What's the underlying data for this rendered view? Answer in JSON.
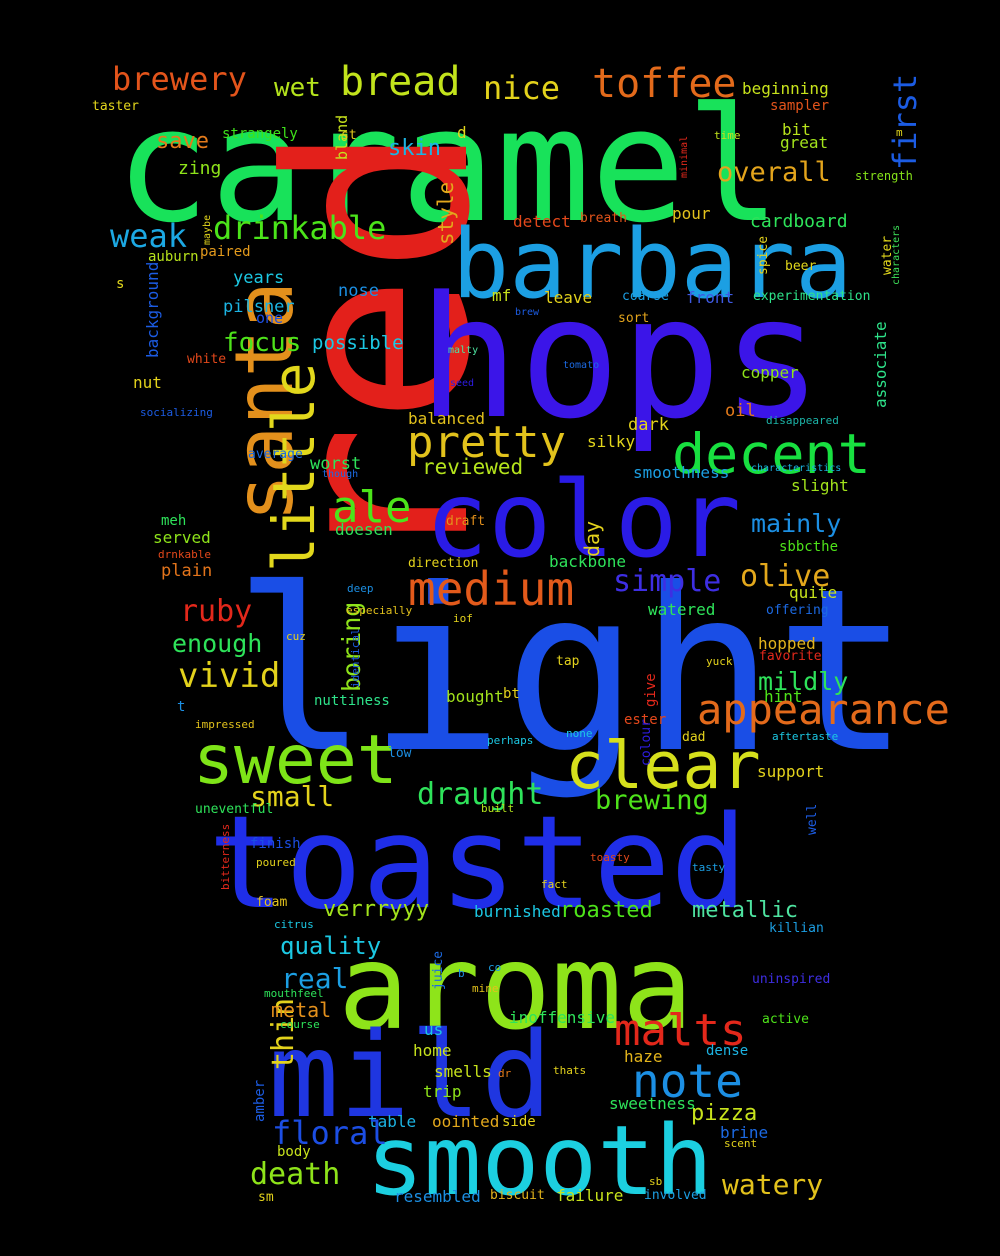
{
  "words": [
    {
      "text": "caramel",
      "color": "#18e25a"
    },
    {
      "text": "red",
      "color": "#e3201b"
    },
    {
      "text": "hops",
      "color": "#3b15e8"
    },
    {
      "text": "light",
      "color": "#1a4ee6"
    },
    {
      "text": "toasted",
      "color": "#1f2ee8"
    },
    {
      "text": "aroma",
      "color": "#8ee41a"
    },
    {
      "text": "smooth",
      "color": "#1ccfe0"
    },
    {
      "text": "mild",
      "color": "#1f36e0"
    },
    {
      "text": "barbara",
      "color": "#1c9fe3"
    },
    {
      "text": "color",
      "color": "#2a1be6"
    },
    {
      "text": "santa",
      "color": "#e3901c"
    },
    {
      "text": "sweet",
      "color": "#7ee418"
    },
    {
      "text": "clear",
      "color": "#d6e01c"
    },
    {
      "text": "little",
      "color": "#e2d81c"
    },
    {
      "text": "pretty",
      "color": "#e2c21c"
    },
    {
      "text": "decent",
      "color": "#18e040"
    },
    {
      "text": "medium",
      "color": "#e35a1b"
    },
    {
      "text": "malts",
      "color": "#e3281b"
    },
    {
      "text": "note",
      "color": "#1c8fe3"
    },
    {
      "text": "ale",
      "color": "#4ce41a"
    },
    {
      "text": "bread",
      "color": "#c2e31c"
    },
    {
      "text": "toffee",
      "color": "#e36a1b"
    },
    {
      "text": "brewery",
      "color": "#e3541b"
    },
    {
      "text": "drinkable",
      "color": "#4be41a"
    },
    {
      "text": "weak",
      "color": "#1ca8e3"
    },
    {
      "text": "nice",
      "color": "#e3d21c"
    },
    {
      "text": "first",
      "color": "#1c5ce3"
    },
    {
      "text": "overall",
      "color": "#e3a41c"
    },
    {
      "text": "wet",
      "color": "#b4e31c"
    },
    {
      "text": "save",
      "color": "#e37a1b"
    },
    {
      "text": "skin",
      "color": "#1cb4e3"
    },
    {
      "text": "zing",
      "color": "#8ee31a"
    },
    {
      "text": "strangely",
      "color": "#3ee31a"
    },
    {
      "text": "bland",
      "color": "#c8e31c"
    },
    {
      "text": "st",
      "color": "#e3c81c"
    },
    {
      "text": "d",
      "color": "#e3d81c"
    },
    {
      "text": "taster",
      "color": "#e3d61c"
    },
    {
      "text": "beginning",
      "color": "#c8e31c"
    },
    {
      "text": "sampler",
      "color": "#e3541b"
    },
    {
      "text": "bit",
      "color": "#b8e31c"
    },
    {
      "text": "great",
      "color": "#a2e31c"
    },
    {
      "text": "time",
      "color": "#c2e31c"
    },
    {
      "text": "minimal",
      "color": "#e3281b"
    },
    {
      "text": "m",
      "color": "#e3d81c"
    },
    {
      "text": "strength",
      "color": "#86e31a"
    },
    {
      "text": "style",
      "color": "#e3a81c"
    },
    {
      "text": "detect",
      "color": "#e3481b"
    },
    {
      "text": "breath",
      "color": "#e3541b"
    },
    {
      "text": "pour",
      "color": "#e3c21c"
    },
    {
      "text": "cardboard",
      "color": "#2ee35a"
    },
    {
      "text": "maybe",
      "color": "#e3d61c"
    },
    {
      "text": "paired",
      "color": "#e39a1c"
    },
    {
      "text": "auburn",
      "color": "#b8e31c"
    },
    {
      "text": "years",
      "color": "#1cc8e3"
    },
    {
      "text": "spice",
      "color": "#e3d21c"
    },
    {
      "text": "beer",
      "color": "#e3d81c"
    },
    {
      "text": "water",
      "color": "#e3d81c"
    },
    {
      "text": "characters",
      "color": "#3ee35a"
    },
    {
      "text": "s",
      "color": "#e3d81c"
    },
    {
      "text": "background",
      "color": "#1c5ce3"
    },
    {
      "text": "nose",
      "color": "#1c8fe3"
    },
    {
      "text": "mf",
      "color": "#c8e31c"
    },
    {
      "text": "leave",
      "color": "#e3d21c"
    },
    {
      "text": "front",
      "color": "#3e5ae3"
    },
    {
      "text": "experimentation",
      "color": "#2ee38a"
    },
    {
      "text": "coarse",
      "color": "#1c9fe3"
    },
    {
      "text": "pilsner",
      "color": "#1cb4e3"
    },
    {
      "text": "one",
      "color": "#1c4ee3"
    },
    {
      "text": "brew",
      "color": "#1c5ce3"
    },
    {
      "text": "sort",
      "color": "#e3a41c"
    },
    {
      "text": "focus",
      "color": "#4ee31a"
    },
    {
      "text": "possible",
      "color": "#1cc8e3"
    },
    {
      "text": "malty",
      "color": "#4ee3a0"
    },
    {
      "text": "tomato",
      "color": "#1c6ae3"
    },
    {
      "text": "associate",
      "color": "#2ee38a"
    },
    {
      "text": "white",
      "color": "#e3481b"
    },
    {
      "text": "copper",
      "color": "#8ee31a"
    },
    {
      "text": "nut",
      "color": "#e3d21c"
    },
    {
      "text": "seed",
      "color": "#2e1ce3"
    },
    {
      "text": "socializing",
      "color": "#1c5ce3"
    },
    {
      "text": "oil",
      "color": "#e37a1b"
    },
    {
      "text": "balanced",
      "color": "#e3c21c"
    },
    {
      "text": "disappeared",
      "color": "#1cb4a8"
    },
    {
      "text": "average",
      "color": "#1c6ae3"
    },
    {
      "text": "dark",
      "color": "#e3d21c"
    },
    {
      "text": "silky",
      "color": "#e3d61c"
    },
    {
      "text": "though",
      "color": "#1c6ae3"
    },
    {
      "text": "worst",
      "color": "#2ee35a"
    },
    {
      "text": "reviewed",
      "color": "#b4e31c"
    },
    {
      "text": "smoothness",
      "color": "#1c9fe3"
    },
    {
      "text": "characteristics",
      "color": "#1cb4e3"
    },
    {
      "text": "slight",
      "color": "#a2e31c"
    },
    {
      "text": "meh",
      "color": "#2ee35a"
    },
    {
      "text": "mainly",
      "color": "#1c8fe3"
    },
    {
      "text": "served",
      "color": "#8ee31a"
    },
    {
      "text": "doesen",
      "color": "#2ee35a"
    },
    {
      "text": "day",
      "color": "#e3d21c"
    },
    {
      "text": "draft",
      "color": "#e3901c"
    },
    {
      "text": "drnkable",
      "color": "#e3481b"
    },
    {
      "text": "plain",
      "color": "#e3741b"
    },
    {
      "text": "backbone",
      "color": "#2ee35a"
    },
    {
      "text": "sbbcthe",
      "color": "#4ee31a"
    },
    {
      "text": "direction",
      "color": "#e3d21c"
    },
    {
      "text": "boring",
      "color": "#8ee31a"
    },
    {
      "text": "simple",
      "color": "#3e2ee3"
    },
    {
      "text": "olive",
      "color": "#e3a81c"
    },
    {
      "text": "quite",
      "color": "#c8e31c"
    },
    {
      "text": "ruby",
      "color": "#e3281b"
    },
    {
      "text": "deep",
      "color": "#1c8fe3"
    },
    {
      "text": "especially",
      "color": "#e3c21c"
    },
    {
      "text": "watered",
      "color": "#2ee35a"
    },
    {
      "text": "offering",
      "color": "#1c6ae3"
    },
    {
      "text": "enough",
      "color": "#2ee35a"
    },
    {
      "text": "cuz",
      "color": "#e3d21c"
    },
    {
      "text": "iof",
      "color": "#e3d21c"
    },
    {
      "text": "identical",
      "color": "#1c5ce3"
    },
    {
      "text": "hopped",
      "color": "#e3b41c"
    },
    {
      "text": "favorite",
      "color": "#e3281b"
    },
    {
      "text": "vivid",
      "color": "#e3d21c"
    },
    {
      "text": "tap",
      "color": "#e3d21c"
    },
    {
      "text": "yuck",
      "color": "#e3d21c"
    },
    {
      "text": "give",
      "color": "#e3281b"
    },
    {
      "text": "mildly",
      "color": "#2ee35a"
    },
    {
      "text": "hint",
      "color": "#4ee31a"
    },
    {
      "text": "bought",
      "color": "#a2e31c"
    },
    {
      "text": "bt",
      "color": "#e3d21c"
    },
    {
      "text": "appearance",
      "color": "#e36a1b"
    },
    {
      "text": "t",
      "color": "#1c8fe3"
    },
    {
      "text": "nuttiness",
      "color": "#2ee38a"
    },
    {
      "text": "impressed",
      "color": "#e3c21c"
    },
    {
      "text": "ester",
      "color": "#e3481b"
    },
    {
      "text": "none",
      "color": "#1cc8e3"
    },
    {
      "text": "dad",
      "color": "#e3d21c"
    },
    {
      "text": "aftertaste",
      "color": "#1cc8e3"
    },
    {
      "text": "perhaps",
      "color": "#1cc8e3"
    },
    {
      "text": "colour",
      "color": "#2e1ce3"
    },
    {
      "text": "low",
      "color": "#1c8fe3"
    },
    {
      "text": "support",
      "color": "#e3d21c"
    },
    {
      "text": "small",
      "color": "#e3d21c"
    },
    {
      "text": "draught",
      "color": "#2ee35a"
    },
    {
      "text": "brewing",
      "color": "#4ee31a"
    },
    {
      "text": "uneventful",
      "color": "#2ee35a"
    },
    {
      "text": "built",
      "color": "#b4e31c"
    },
    {
      "text": "well",
      "color": "#1c5ce3"
    },
    {
      "text": "bitterness",
      "color": "#e3281b"
    },
    {
      "text": "finish",
      "color": "#1c4ee3"
    },
    {
      "text": "poured",
      "color": "#e3d21c"
    },
    {
      "text": "toasty",
      "color": "#e3481b"
    },
    {
      "text": "tasty",
      "color": "#1c9fe3"
    },
    {
      "text": "fact",
      "color": "#e3d21c"
    },
    {
      "text": "foam",
      "color": "#e3c21c"
    },
    {
      "text": "verrryyy",
      "color": "#a2e31c"
    },
    {
      "text": "burnished",
      "color": "#1cc8e3"
    },
    {
      "text": "roasted",
      "color": "#4ee31a"
    },
    {
      "text": "metallic",
      "color": "#4ee3a0"
    },
    {
      "text": "citrus",
      "color": "#1cc8e3"
    },
    {
      "text": "killian",
      "color": "#1c9fe3"
    },
    {
      "text": "thin",
      "color": "#e3d21c"
    },
    {
      "text": "quality",
      "color": "#1cc8e3"
    },
    {
      "text": "real",
      "color": "#1c9fe3"
    },
    {
      "text": "co",
      "color": "#1c9fe3"
    },
    {
      "text": "b",
      "color": "#1c8fe3"
    },
    {
      "text": "mine",
      "color": "#e3c21c"
    },
    {
      "text": "juice",
      "color": "#1c6ae3"
    },
    {
      "text": "mouthfeel",
      "color": "#2ee35a"
    },
    {
      "text": "uninspired",
      "color": "#3e2ee3"
    },
    {
      "text": "metal",
      "color": "#e3901c"
    },
    {
      "text": "course",
      "color": "#2ee35a"
    },
    {
      "text": "inoffensive",
      "color": "#2ee35a"
    },
    {
      "text": "active",
      "color": "#4ee31a"
    },
    {
      "text": "us",
      "color": "#1cc8e3"
    },
    {
      "text": "home",
      "color": "#c8e31c"
    },
    {
      "text": "haze",
      "color": "#e3b41c"
    },
    {
      "text": "dense",
      "color": "#1cb4e3"
    },
    {
      "text": "smells",
      "color": "#c8e31c"
    },
    {
      "text": "dr",
      "color": "#e37a1b"
    },
    {
      "text": "thats",
      "color": "#e3d21c"
    },
    {
      "text": "trip",
      "color": "#8ee31a"
    },
    {
      "text": "amber",
      "color": "#1c5ce3"
    },
    {
      "text": "table",
      "color": "#1cb4e3"
    },
    {
      "text": "oointed",
      "color": "#e3a81c"
    },
    {
      "text": "side",
      "color": "#e3d21c"
    },
    {
      "text": "sweetness",
      "color": "#2ee35a"
    },
    {
      "text": "pizza",
      "color": "#c8e31c"
    },
    {
      "text": "brine",
      "color": "#1c6ae3"
    },
    {
      "text": "scent",
      "color": "#e3d21c"
    },
    {
      "text": "floral",
      "color": "#1c4ee3"
    },
    {
      "text": "body",
      "color": "#c8e31c"
    },
    {
      "text": "death",
      "color": "#8ee31a"
    },
    {
      "text": "watery",
      "color": "#e3c21c"
    },
    {
      "text": "sb",
      "color": "#e3d21c"
    },
    {
      "text": "sm",
      "color": "#e3d21c"
    },
    {
      "text": "resembled",
      "color": "#1c8fe3"
    },
    {
      "text": "biscuit",
      "color": "#e3b41c"
    },
    {
      "text": "failure",
      "color": "#c8e31c"
    },
    {
      "text": "involved",
      "color": "#1c9fe3"
    },
    {
      "text": "brewpub",
      "color": "#c8e31c"
    }
  ]
}
